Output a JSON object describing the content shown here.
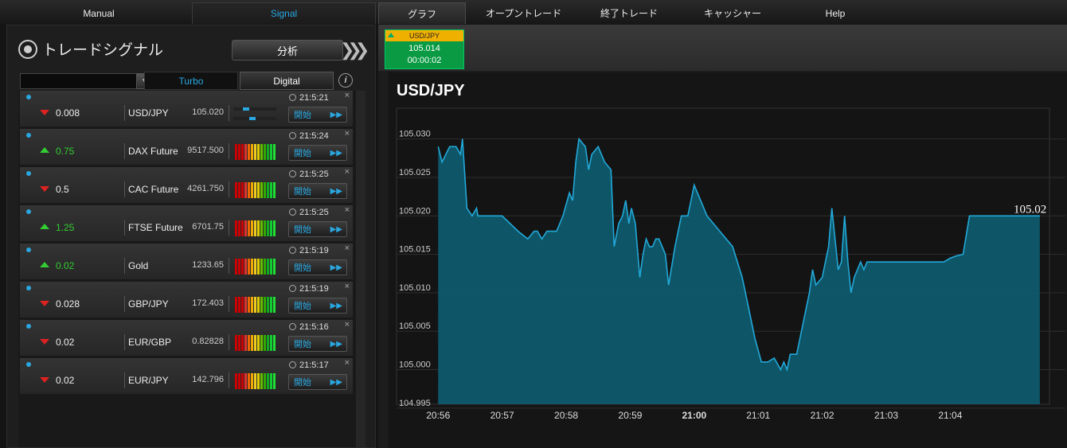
{
  "nav": {
    "left_tabs": [
      {
        "label": "Manual"
      },
      {
        "label": "Signal"
      }
    ],
    "right_tabs": [
      {
        "label": "グラフ"
      },
      {
        "label": "オープントレード"
      },
      {
        "label": "終了トレード"
      },
      {
        "label": "キャッシャー"
      },
      {
        "label": "Help"
      }
    ]
  },
  "signal_panel": {
    "title": "トレードシグナル",
    "analyze_label": "分析",
    "subtabs": [
      {
        "label": "Turbo"
      },
      {
        "label": "Digital"
      }
    ],
    "dropdown_value": "",
    "go_label": "開始",
    "rows": [
      {
        "dir": "down",
        "change": "0.008",
        "symbol": "USD/JPY",
        "price": "105.020",
        "time": "21:5:21",
        "meter": "bar"
      },
      {
        "dir": "up",
        "change": "0.75",
        "symbol": "DAX Future",
        "price": "9517.500",
        "time": "21:5:24",
        "meter": "stripes"
      },
      {
        "dir": "down",
        "change": "0.5",
        "symbol": "CAC Future",
        "price": "4261.750",
        "time": "21:5:25",
        "meter": "stripes"
      },
      {
        "dir": "up",
        "change": "1.25",
        "symbol": "FTSE Future",
        "price": "6701.75",
        "time": "21:5:25",
        "meter": "stripes"
      },
      {
        "dir": "up",
        "change": "0.02",
        "symbol": "Gold",
        "price": "1233.65",
        "time": "21:5:19",
        "meter": "stripes"
      },
      {
        "dir": "down",
        "change": "0.028",
        "symbol": "GBP/JPY",
        "price": "172.403",
        "time": "21:5:19",
        "meter": "stripes"
      },
      {
        "dir": "down",
        "change": "0.02",
        "symbol": "EUR/GBP",
        "price": "0.82828",
        "time": "21:5:16",
        "meter": "stripes"
      },
      {
        "dir": "down",
        "change": "0.02",
        "symbol": "EUR/JPY",
        "price": "142.796",
        "time": "21:5:17",
        "meter": "stripes"
      }
    ]
  },
  "mini_ticker": {
    "symbol": "USD/JPY",
    "price": "105.014",
    "timer": "00:00:02"
  },
  "chart_data": {
    "type": "area",
    "title": "USD/JPY",
    "ylim": [
      104.995,
      105.035
    ],
    "yticks": [
      "105.030",
      "105.025",
      "105.020",
      "105.015",
      "105.010",
      "105.005",
      "105.000",
      "104.995"
    ],
    "xticks": [
      "20:56",
      "20:57",
      "20:58",
      "20:59",
      "21:00",
      "21:01",
      "21:02",
      "21:03",
      "21:04"
    ],
    "bold_xtick": "21:00",
    "last_label": "105.02",
    "line_color": "#22a8d8",
    "x_minutes": [
      0,
      0.06,
      0.18,
      0.28,
      0.35,
      0.38,
      0.45,
      0.53,
      0.6,
      0.62,
      0.68,
      0.72,
      0.8,
      0.85,
      1,
      1.25,
      1.4,
      1.5,
      1.55,
      1.62,
      1.7,
      1.75,
      1.8,
      1.85,
      1.95,
      2.05,
      2.1,
      2.15,
      2.2,
      2.3,
      2.35,
      2.4,
      2.5,
      2.6,
      2.7,
      2.75,
      2.82,
      2.88,
      2.93,
      2.98,
      3.02,
      3.08,
      3.15,
      3.2,
      3.25,
      3.3,
      3.35,
      3.4,
      3.45,
      3.5,
      3.55,
      3.6,
      3.7,
      3.8,
      3.9,
      4.0,
      4.1,
      4.2,
      4.3,
      4.4,
      4.5,
      4.6,
      4.75,
      4.85,
      4.95,
      5.05,
      5.15,
      5.25,
      5.35,
      5.4,
      5.45,
      5.5,
      5.55,
      5.6,
      5.65,
      5.7,
      5.75,
      5.8,
      5.85,
      5.9,
      6.0,
      6.05,
      6.1,
      6.15,
      6.2,
      6.25,
      6.3,
      6.35,
      6.4,
      6.45,
      6.5,
      6.55,
      6.6,
      6.65,
      6.7,
      6.75,
      6.8,
      6.85,
      6.9,
      7.0,
      7.1,
      7.2,
      7.3,
      7.4,
      7.5,
      7.6,
      7.7,
      7.8,
      7.9,
      8.0,
      8.1,
      8.2,
      8.3,
      8.4,
      8.55,
      8.65,
      8.75,
      8.85,
      9.0,
      9.1,
      9.15,
      9.25,
      9.35,
      9.4
    ],
    "y": [
      105.029,
      105.027,
      105.029,
      105.029,
      105.028,
      105.03,
      105.021,
      105.02,
      105.021,
      105.02,
      105.02,
      105.02,
      105.02,
      105.02,
      105.02,
      105.018,
      105.017,
      105.018,
      105.018,
      105.017,
      105.018,
      105.018,
      105.018,
      105.018,
      105.02,
      105.023,
      105.022,
      105.027,
      105.03,
      105.029,
      105.026,
      105.028,
      105.029,
      105.027,
      105.026,
      105.016,
      105.019,
      105.02,
      105.022,
      105.019,
      105.021,
      105.019,
      105.012,
      105.015,
      105.017,
      105.016,
      105.016,
      105.017,
      105.017,
      105.016,
      105.015,
      105.011,
      105.016,
      105.02,
      105.02,
      105.024,
      105.022,
      105.02,
      105.019,
      105.018,
      105.017,
      105.016,
      105.012,
      105.008,
      105.004,
      105.001,
      105.001,
      105.0015,
      105.0,
      105.001,
      105.0,
      105.002,
      105.002,
      105.002,
      105.004,
      105.006,
      105.008,
      105.01,
      105.013,
      105.011,
      105.012,
      105.014,
      105.016,
      105.021,
      105.017,
      105.013,
      105.014,
      105.02,
      105.014,
      105.01,
      105.012,
      105.013,
      105.014,
      105.013,
      105.014,
      105.014,
      105.014,
      105.014,
      105.014,
      105.014,
      105.014,
      105.014,
      105.014,
      105.014,
      105.014,
      105.014,
      105.014,
      105.014,
      105.014,
      105.0145,
      105.0148,
      105.015,
      105.02,
      105.02,
      105.02,
      105.02,
      105.02,
      105.02,
      105.02,
      105.02,
      105.02,
      105.02,
      105.02,
      105.02
    ]
  }
}
